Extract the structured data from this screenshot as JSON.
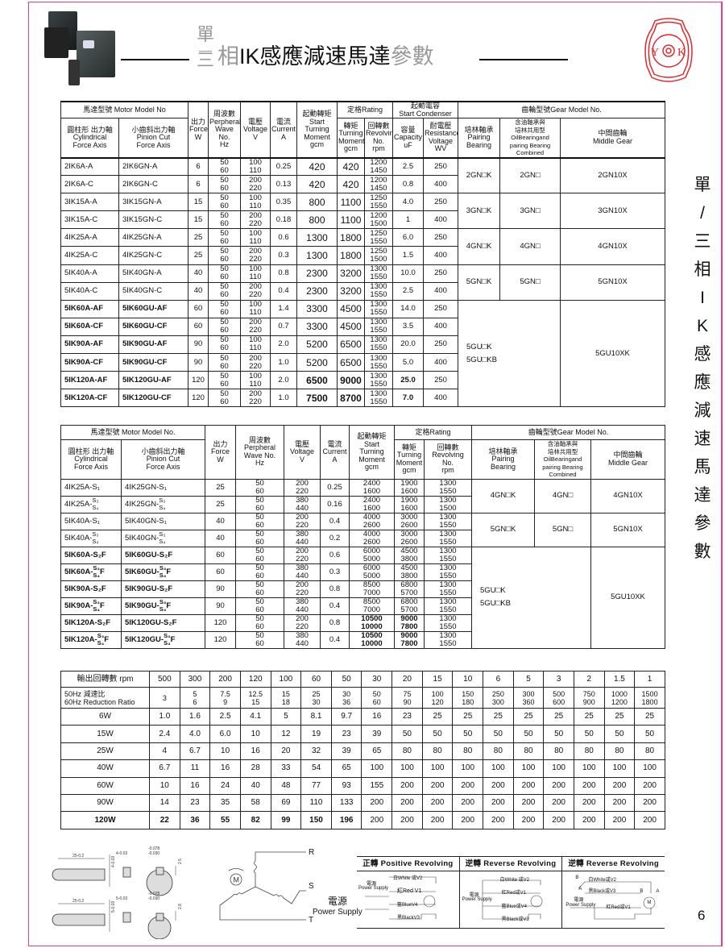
{
  "header": {
    "title_stack_top": "單",
    "title_stack_bottom": "三",
    "title_gray_1": "相",
    "title_main": "IK感應減速馬達",
    "title_gray_2": "參數",
    "logo_text": "YOK",
    "brand_color": "#e0409a",
    "logo_color": "#e0282c"
  },
  "side_title": [
    "單",
    "/",
    "三",
    "相",
    "I",
    "K",
    "感",
    "應",
    "減",
    "速",
    "馬",
    "達",
    "參",
    "數"
  ],
  "page_number": "6",
  "table1": {
    "header_row1": [
      "馬達型號 Motor Model No",
      "出力\nForce\nW",
      "周波數\nPerpheral\nWave No.\nHz",
      "電壓\nVoltage\nV",
      "電流\nCurrent\nA",
      "起動轉矩\nStart\nTurning\nMoment\ngcm",
      "定格Rating",
      "起動電容\nStart Condenser",
      "齒輪型號Gear Model No."
    ],
    "header_row2": [
      "圓柱形 出力軸\nCylindrical\nForce Axis",
      "小齒斜出力軸\nPinion Cut\nForce Axis",
      "轉矩\nTurning\nMoment\ngcm",
      "回轉數\nRevolving\nNo.\nrpm",
      "容量\nCapacity\nuF",
      "耐電壓\nResistance\nVoltage\nWV",
      "培林軸承\nPairing\nBearing",
      "含油軸承與\n培林共用型\nOilBearingand\npairing Bearing\nCombined",
      "中間齒輪\nMiddle Gear"
    ],
    "rows": [
      [
        {
          "pre": "2IK6A-A"
        },
        {
          "pre": "2IK6GN-A"
        },
        "6",
        [
          "50",
          "60"
        ],
        [
          "100",
          "110"
        ],
        "0.25",
        "420",
        "420",
        [
          "1200",
          "1450"
        ],
        "2.5",
        "250"
      ],
      [
        {
          "pre": "2IK6A-C"
        },
        {
          "pre": "2IK6GN-C"
        },
        "6",
        [
          "50",
          "60"
        ],
        [
          "200",
          "220"
        ],
        "0.13",
        "420",
        "420",
        [
          "1200",
          "1450"
        ],
        "0.8",
        "400"
      ],
      [
        {
          "pre": "3IK15A-A"
        },
        {
          "pre": "3IK15GN-A"
        },
        "15",
        [
          "50",
          "60"
        ],
        [
          "100",
          "110"
        ],
        "0.35",
        "800",
        "1100",
        [
          "1250",
          "1550"
        ],
        "4.0",
        "250"
      ],
      [
        {
          "pre": "3IK15A-C"
        },
        {
          "pre": "3IK15GN-C"
        },
        "15",
        [
          "50",
          "60"
        ],
        [
          "200",
          "220"
        ],
        "0.18",
        "800",
        "1100",
        [
          "1200",
          "1500"
        ],
        "1",
        "400"
      ],
      [
        {
          "pre": "4IK25A-A"
        },
        {
          "pre": "4IK25GN-A"
        },
        "25",
        [
          "50",
          "60"
        ],
        [
          "100",
          "110"
        ],
        "0.6",
        "1300",
        "1800",
        [
          "1250",
          "1550"
        ],
        "6.0",
        "250"
      ],
      [
        {
          "pre": "4IK25A-C"
        },
        {
          "pre": "4IK25GN-C"
        },
        "25",
        [
          "50",
          "60"
        ],
        [
          "200",
          "220"
        ],
        "0.3",
        "1300",
        "1800",
        [
          "1250",
          "1500"
        ],
        "1.5",
        "400"
      ],
      [
        {
          "pre": "5IK40A-A"
        },
        {
          "pre": "5IK40GN-A"
        },
        "40",
        [
          "50",
          "60"
        ],
        [
          "100",
          "110"
        ],
        "0.8",
        "2300",
        "3200",
        [
          "1300",
          "1550"
        ],
        "10.0",
        "250"
      ],
      [
        {
          "pre": "5IK40A-C"
        },
        {
          "pre": "5IK40GN-C"
        },
        "40",
        [
          "50",
          "60"
        ],
        [
          "200",
          "220"
        ],
        "0.4",
        "2300",
        "3200",
        [
          "1300",
          "1550"
        ],
        "2.5",
        "400"
      ],
      [
        {
          "pre": "5IK60A-AF"
        },
        {
          "pre": "5IK60GU-AF"
        },
        "60",
        [
          "50",
          "60"
        ],
        [
          "100",
          "110"
        ],
        "1.4",
        "3300",
        "4500",
        [
          "1300",
          "1550"
        ],
        "14.0",
        "250"
      ],
      [
        {
          "pre": "5IK60A-CF"
        },
        {
          "pre": "5IK60GU-CF"
        },
        "60",
        [
          "50",
          "60"
        ],
        [
          "200",
          "220"
        ],
        "0.7",
        "3300",
        "4500",
        [
          "1300",
          "1550"
        ],
        "3.5",
        "400"
      ],
      [
        {
          "pre": "5IK90A-AF"
        },
        {
          "pre": "5IK90GU-AF"
        },
        "90",
        [
          "50",
          "60"
        ],
        [
          "100",
          "110"
        ],
        "2.0",
        "5200",
        "6500",
        [
          "1300",
          "1550"
        ],
        "20.0",
        "250"
      ],
      [
        {
          "pre": "5IK90A-CF"
        },
        {
          "pre": "5IK90GU-CF"
        },
        "90",
        [
          "50",
          "60"
        ],
        [
          "200",
          "220"
        ],
        "1.0",
        "5200",
        "6500",
        [
          "1300",
          "1550"
        ],
        "5.0",
        "400"
      ],
      [
        {
          "pre": "5IK120A-AF"
        },
        {
          "pre": "5IK120GU-AF"
        },
        "120",
        [
          "50",
          "60"
        ],
        [
          "100",
          "110"
        ],
        "2.0",
        "6500",
        "9000",
        [
          "1300",
          "1550"
        ],
        "25.0",
        "250"
      ],
      [
        {
          "pre": "5IK120A-CF"
        },
        {
          "pre": "5IK120GU-CF"
        },
        "120",
        [
          "50",
          "60"
        ],
        [
          "200",
          "220"
        ],
        "1.0",
        "7500",
        "8700",
        [
          "1300",
          "1550"
        ],
        "7.0",
        "400"
      ]
    ],
    "gear_groups": [
      {
        "span_rows": 2,
        "pairing": "2GN□K",
        "oil": "2GN□",
        "middle": "2GN10X"
      },
      {
        "span_rows": 2,
        "pairing": "3GN□K",
        "oil": "3GN□",
        "middle": "3GN10X"
      },
      {
        "span_rows": 2,
        "pairing": "4GN□K",
        "oil": "4GN□",
        "middle": "4GN10X"
      },
      {
        "span_rows": 2,
        "pairing": "5GN□K",
        "oil": "5GN□",
        "middle": "5GN10X"
      },
      {
        "span_rows": 6,
        "merged": [
          "5GU□K",
          "5GU□KB"
        ],
        "middle": "5GU10XK"
      }
    ]
  },
  "table2": {
    "header_row1": [
      "馬達型號 Motor Model No.",
      "出力\nForce\nW",
      "周波數\nPerpheral\nWave No.\nHz",
      "電壓\nVoltage\nV",
      "電流\nCurrent\nA",
      "起動轉矩\nStart\nTurning\nMoment\ngcm",
      "定格Rating",
      "齒輪型號Gear Model No."
    ],
    "header_row2": [
      "圓柱形 出力軸\nCylindrical\nForce Axis",
      "小齒斜出力軸\nPinion Cut\nForce Axis",
      "轉矩\nTurning\nMoment\ngcm",
      "回轉數\nRevolving\nNo.\nrpm",
      "培林軸承\nPairing\nBearing",
      "含油軸承與\n培林共用型\nOilBearingand\npairing Bearing\nCombined",
      "中間齒輪\nMiddle Gear"
    ],
    "rows": [
      [
        {
          "pre": "4IK25A-S₁"
        },
        {
          "pre": "4IK25GN-S₁"
        },
        "25",
        [
          "50",
          "60"
        ],
        [
          "200",
          "220"
        ],
        "0.25",
        [
          "2400",
          "1600"
        ],
        [
          "1900",
          "1600"
        ],
        [
          "1300",
          "1550"
        ]
      ],
      [
        {
          "pre": "4IK25A-",
          "top": "S₃",
          "bot": "S₄"
        },
        {
          "pre": "4IK25GN-",
          "top": "S₃",
          "bot": "S₄"
        },
        "25",
        [
          "50",
          "60"
        ],
        [
          "380",
          "440"
        ],
        "0.16",
        [
          "2400",
          "1600"
        ],
        [
          "1900",
          "1600"
        ],
        [
          "1300",
          "1500"
        ]
      ],
      [
        {
          "pre": "5IK40A-S₁"
        },
        {
          "pre": "5IK40GN-S₁"
        },
        "40",
        [
          "50",
          "60"
        ],
        [
          "200",
          "220"
        ],
        "0.4",
        [
          "4000",
          "2600"
        ],
        [
          "3000",
          "2600"
        ],
        [
          "1300",
          "1550"
        ]
      ],
      [
        {
          "pre": "5IK40A-",
          "top": "S₃",
          "bot": "S₄"
        },
        {
          "pre": "5IK40GN-",
          "top": "S₃",
          "bot": "S₄"
        },
        "40",
        [
          "50",
          "60"
        ],
        [
          "380",
          "440"
        ],
        "0.2",
        [
          "4000",
          "2600"
        ],
        [
          "3000",
          "2600"
        ],
        [
          "1300",
          "1550"
        ]
      ],
      [
        {
          "pre": "5IK60A-S₂F"
        },
        {
          "pre": "5IK60GU-S₂F"
        },
        "60",
        [
          "50",
          "60"
        ],
        [
          "200",
          "220"
        ],
        "0.6",
        [
          "6000",
          "5000"
        ],
        [
          "4500",
          "3800"
        ],
        [
          "1300",
          "1550"
        ]
      ],
      [
        {
          "pre": "5IK60A-",
          "top": "S₃",
          "bot": "S₄",
          "post": "F"
        },
        {
          "pre": "5IK60GU-",
          "top": "S₃",
          "bot": "S₄",
          "post": "F"
        },
        "60",
        [
          "50",
          "60"
        ],
        [
          "380",
          "440"
        ],
        "0.3",
        [
          "6000",
          "5000"
        ],
        [
          "4500",
          "3800"
        ],
        [
          "1300",
          "1550"
        ]
      ],
      [
        {
          "pre": "5IK90A-S₂F"
        },
        {
          "pre": "5IK90GU-S₂F"
        },
        "90",
        [
          "50",
          "60"
        ],
        [
          "200",
          "220"
        ],
        "0.8",
        [
          "8500",
          "7000"
        ],
        [
          "6800",
          "5700"
        ],
        [
          "1300",
          "1550"
        ]
      ],
      [
        {
          "pre": "5IK90A-",
          "top": "S₃",
          "bot": "S₄",
          "post": "F"
        },
        {
          "pre": "5IK90GU-",
          "top": "S₃",
          "bot": "S₄",
          "post": "F"
        },
        "90",
        [
          "50",
          "60"
        ],
        [
          "380",
          "440"
        ],
        "0.4",
        [
          "8500",
          "7000"
        ],
        [
          "6800",
          "5700"
        ],
        [
          "1300",
          "1550"
        ]
      ],
      [
        {
          "pre": "5IK120A-S₂F"
        },
        {
          "pre": "5IK120GU-S₂F"
        },
        "120",
        [
          "50",
          "60"
        ],
        [
          "200",
          "220"
        ],
        "0.8",
        [
          "10500",
          "10000"
        ],
        [
          "9000",
          "7800"
        ],
        [
          "1300",
          "1550"
        ]
      ],
      [
        {
          "pre": "5IK120A-",
          "top": "S₃",
          "bot": "S₄",
          "post": "F"
        },
        {
          "pre": "5IK120GU-",
          "top": "S₃",
          "bot": "S₄",
          "post": "F"
        },
        "120",
        [
          "50",
          "60"
        ],
        [
          "380",
          "440"
        ],
        "0.4",
        [
          "10500",
          "10000"
        ],
        [
          "9000",
          "7800"
        ],
        [
          "1300",
          "1550"
        ]
      ]
    ],
    "gear_groups": [
      {
        "span_rows": 2,
        "pairing": "4GN□K",
        "oil": "4GN□",
        "middle": "4GN10X"
      },
      {
        "span_rows": 2,
        "pairing": "5GN□K",
        "oil": "5GN□",
        "middle": "5GN10X"
      },
      {
        "span_rows": 6,
        "merged": [
          "5GU□K",
          "5GU□KB"
        ],
        "middle": "5GU10XK"
      }
    ]
  },
  "table3": {
    "rpm_label": "輸出回轉數 rpm",
    "rpm": [
      "500",
      "300",
      "200",
      "120",
      "100",
      "60",
      "50",
      "30",
      "20",
      "15",
      "10",
      "6",
      "5",
      "3",
      "2",
      "1.5",
      "1"
    ],
    "ratio_label": "50Hz 減速比\n60Hz Reduction Ratio",
    "ratio": [
      [
        "3"
      ],
      [
        "5",
        "6"
      ],
      [
        "7.5",
        "9"
      ],
      [
        "12.5",
        "15"
      ],
      [
        "15",
        "18"
      ],
      [
        "25",
        "30"
      ],
      [
        "30",
        "36"
      ],
      [
        "50",
        "60"
      ],
      [
        "75",
        "90"
      ],
      [
        "100",
        "120"
      ],
      [
        "150",
        "180"
      ],
      [
        "250",
        "300"
      ],
      [
        "300",
        "360"
      ],
      [
        "500",
        "600"
      ],
      [
        "750",
        "900"
      ],
      [
        "1000",
        "1200"
      ],
      [
        "1500",
        "1800"
      ]
    ],
    "rows": [
      {
        "label": "6W",
        "values": [
          "1.0",
          "1.6",
          "2.5",
          "4.1",
          "5",
          "8.1",
          "9.7",
          "16",
          "23",
          "25",
          "25",
          "25",
          "25",
          "25",
          "25",
          "25",
          "25"
        ]
      },
      {
        "label": "15W",
        "values": [
          "2.4",
          "4.0",
          "6.0",
          "10",
          "12",
          "19",
          "23",
          "39",
          "50",
          "50",
          "50",
          "50",
          "50",
          "50",
          "50",
          "50",
          "50"
        ]
      },
      {
        "label": "25W",
        "values": [
          "4",
          "6.7",
          "10",
          "16",
          "20",
          "32",
          "39",
          "65",
          "80",
          "80",
          "80",
          "80",
          "80",
          "80",
          "80",
          "80",
          "80"
        ]
      },
      {
        "label": "40W",
        "values": [
          "6.7",
          "11",
          "16",
          "28",
          "33",
          "54",
          "65",
          "100",
          "100",
          "100",
          "100",
          "100",
          "100",
          "100",
          "100",
          "100",
          "100"
        ]
      },
      {
        "label": "60W",
        "values": [
          "10",
          "16",
          "24",
          "40",
          "48",
          "77",
          "93",
          "155",
          "200",
          "200",
          "200",
          "200",
          "200",
          "200",
          "200",
          "200",
          "200"
        ]
      },
      {
        "label": "90W",
        "values": [
          "14",
          "23",
          "35",
          "58",
          "69",
          "110",
          "133",
          "200",
          "200",
          "200",
          "200",
          "200",
          "200",
          "200",
          "200",
          "200",
          "200"
        ]
      },
      {
        "label": "120W",
        "values": [
          "22",
          "36",
          "55",
          "82",
          "99",
          "150",
          "196",
          "200",
          "200",
          "200",
          "200",
          "200",
          "200",
          "200",
          "200",
          "200",
          "200"
        ]
      }
    ]
  },
  "keyway": {
    "dims": [
      "25-0.2",
      "4-0.03",
      "4-0.03",
      "-0.078",
      "-0.030",
      "2.5",
      "25-0.2",
      "5-0.03",
      "5-0.03",
      "-0.078",
      "-0.030",
      "2.8"
    ]
  },
  "wiring": {
    "terminals": [
      "R",
      "S",
      "T"
    ],
    "motor_label": "M",
    "power_cn": "電源",
    "power_en": "Power Supply"
  },
  "wiring_boxes": [
    {
      "title": "正轉 Positive Revolving",
      "labels": [
        "白White 或V2",
        "電源",
        "Power Supply",
        "紅Red V1",
        "藍BlueV4",
        "黑BlackV3"
      ]
    },
    {
      "title": "逆轉 Reverse Revolving",
      "labels": [
        "白White 或V2",
        "電源",
        "Power Supply",
        "紅Red或V1",
        "藍Blue或V4",
        "黑Black或V3"
      ]
    },
    {
      "title": "逆轉 Reverse Revolving",
      "labels": [
        "B",
        "白White或V2",
        "A",
        "黑Black或V3",
        "電源",
        "Power Supply",
        "紅Red或V1",
        "B",
        "A",
        "M"
      ]
    }
  ]
}
